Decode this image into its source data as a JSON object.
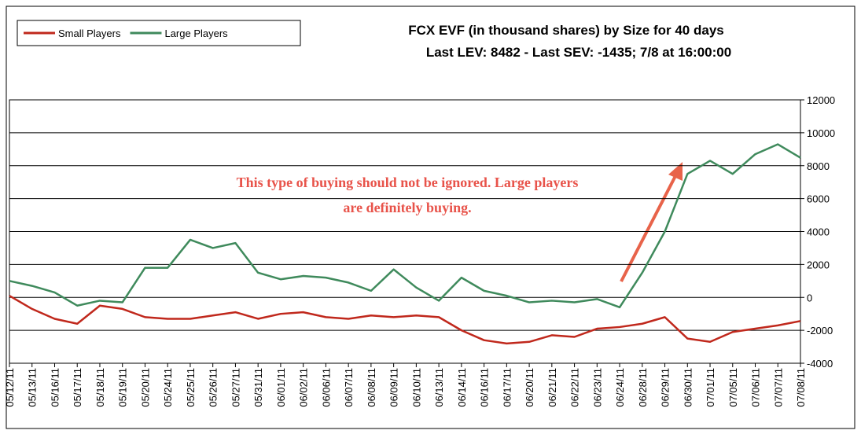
{
  "chart_data": {
    "type": "line",
    "title": "FCX EVF (in thousand shares) by Size for 40 days",
    "subtitle": "Last LEV: 8482 - Last SEV: -1435; 7/8 at 16:00:00",
    "annotation": [
      "This type of buying should not be ignored. Large players",
      "are definitely buying."
    ],
    "categories": [
      "05/12/11",
      "05/13/11",
      "05/16/11",
      "05/17/11",
      "05/18/11",
      "05/19/11",
      "05/20/11",
      "05/24/11",
      "05/25/11",
      "05/26/11",
      "05/27/11",
      "05/31/11",
      "06/01/11",
      "06/02/11",
      "06/06/11",
      "06/07/11",
      "06/08/11",
      "06/09/11",
      "06/10/11",
      "06/13/11",
      "06/14/11",
      "06/16/11",
      "06/17/11",
      "06/20/11",
      "06/21/11",
      "06/22/11",
      "06/23/11",
      "06/24/11",
      "06/28/11",
      "06/29/11",
      "06/30/11",
      "07/01/11",
      "07/05/11",
      "07/06/11",
      "07/07/11",
      "07/08/11"
    ],
    "series": [
      {
        "name": "Small Players",
        "color": "#c0281c",
        "values": [
          100,
          -700,
          -1300,
          -1600,
          -500,
          -700,
          -1200,
          -1300,
          -1300,
          -1100,
          -900,
          -1300,
          -1000,
          -900,
          -1200,
          -1300,
          -1100,
          -1200,
          -1100,
          -1200,
          -2000,
          -2600,
          -2800,
          -2700,
          -2300,
          -2400,
          -1900,
          -1800,
          -1600,
          -1200,
          -2500,
          -2700,
          -2100,
          -1900,
          -1700,
          -1435
        ]
      },
      {
        "name": "Large Players",
        "color": "#3f8a5c",
        "values": [
          1000,
          700,
          300,
          -500,
          -200,
          -300,
          1800,
          1800,
          3500,
          3000,
          3300,
          1500,
          1100,
          1300,
          1200,
          900,
          400,
          1700,
          600,
          -200,
          1200,
          400,
          100,
          -300,
          -200,
          -300,
          -100,
          -600,
          1500,
          4000,
          7500,
          8300,
          7500,
          8700,
          9300,
          8482
        ]
      }
    ],
    "ylim": [
      -4000,
      12000
    ],
    "yticks": [
      -4000,
      -2000,
      0,
      2000,
      4000,
      6000,
      8000,
      10000,
      12000
    ],
    "grid": true
  }
}
